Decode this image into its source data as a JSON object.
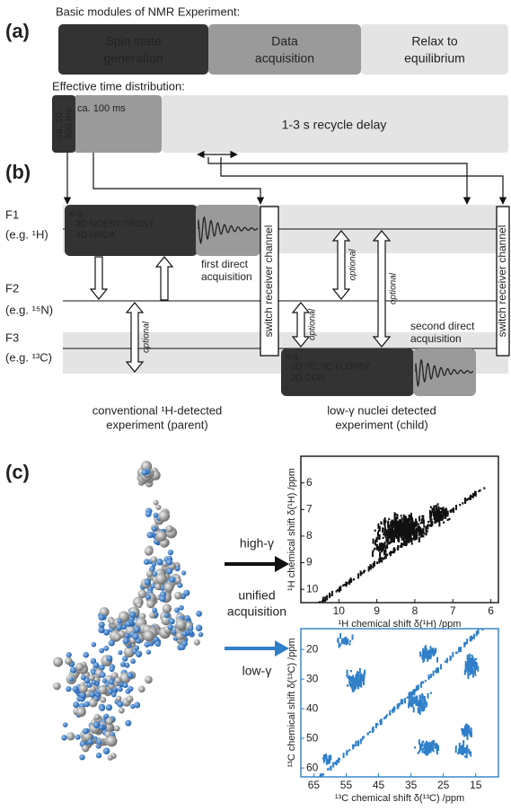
{
  "panel_a": {
    "label": "(a)",
    "modules_title": "Basic modules of NMR Experiment:",
    "modules": [
      [
        "Spin state",
        "generation"
      ],
      [
        "Data",
        "acquisition"
      ],
      [
        "Relax to",
        "equilibrium"
      ]
    ],
    "time_title": "Effective time distribution:",
    "times": [
      [
        "ca. 10-",
        "300 ms"
      ],
      [
        "ca. 100 ms"
      ],
      [
        "1-3 s recycle delay"
      ]
    ]
  },
  "panel_b": {
    "label": "(b)",
    "channels": [
      {
        "name": "F1",
        "nucleus": "(e.g. ¹H)"
      },
      {
        "name": "F2",
        "nucleus": "(e.g. ¹⁵N)"
      },
      {
        "name": "F3",
        "nucleus": "(e.g. ¹³C)"
      }
    ],
    "parent_box": [
      "e.g.:",
      "- 3D NOESY-TROSY",
      "- 3D HNCA",
      "- ..."
    ],
    "child_box": [
      "e.g.:",
      "- 2D ¹³C,¹³C FLOPSY",
      "- 2D CON",
      "- ..."
    ],
    "first_acquisition": [
      "first direct",
      "acquisition"
    ],
    "second_acquisition": [
      "second direct",
      "acquisition"
    ],
    "switch": "switch receiver channel",
    "optional": "optional",
    "parent_caption": [
      "conventional ¹H-detected",
      "experiment (parent)"
    ],
    "child_caption": [
      "low-γ nuclei detected",
      "experiment (child)"
    ]
  },
  "panel_c": {
    "label": "(c)",
    "high": "high-γ",
    "unified": [
      "unified",
      "acquisition"
    ],
    "low": "low-γ",
    "spectra": [
      {
        "xlabel": "¹H chemical shift δ(¹H) /ppm",
        "ylabel": "¹H chemical shift δ(¹H) /ppm",
        "xlim": [
          11,
          5.8
        ],
        "ylim": [
          5,
          10.5
        ],
        "xticks": [
          10,
          9,
          8,
          7,
          6
        ],
        "yticks": [
          6,
          7,
          8,
          9,
          10
        ],
        "color": "#111111"
      },
      {
        "xlabel": "¹³C chemical shift δ(¹³C) /ppm",
        "ylabel": "¹³C chemical shift δ(¹³C) /ppm",
        "xlim": [
          69,
          8
        ],
        "ylim": [
          13,
          63
        ],
        "xticks": [
          65,
          55,
          45,
          35,
          25,
          15
        ],
        "yticks": [
          20,
          30,
          40,
          50,
          60
        ],
        "color": "#2f7fc9"
      }
    ]
  }
}
